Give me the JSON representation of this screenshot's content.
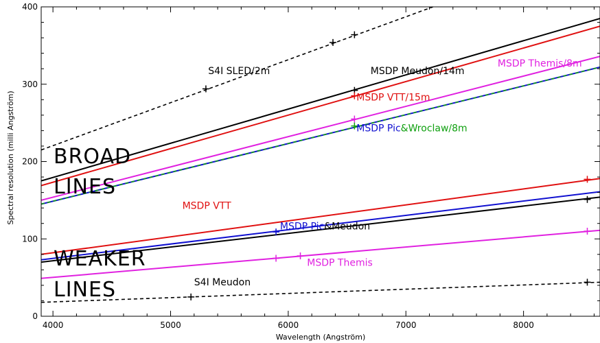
{
  "chart_data": {
    "type": "line",
    "title": "",
    "xlabel": "Wavelength (Angström)",
    "ylabel": "Spectral resolution (milli Angström)",
    "xlim": [
      3900,
      8650
    ],
    "ylim": [
      0,
      400
    ],
    "xticks": [
      4000,
      5000,
      6000,
      7000,
      8000
    ],
    "yticks": [
      0,
      100,
      200,
      300,
      400
    ],
    "grid": false,
    "colors": {
      "black": "#000000",
      "red": "#e01010",
      "magenta": "#e020e0",
      "blue": "#1010d0",
      "green": "#10a010"
    },
    "series": [
      {
        "color": "#000000",
        "dash": true,
        "x": [
          3900,
          7230
        ],
        "y": [
          215,
          400
        ]
      },
      {
        "color": "#000000",
        "dash": false,
        "x": [
          3900,
          8650
        ],
        "y": [
          175,
          385
        ]
      },
      {
        "color": "#e01010",
        "dash": false,
        "x": [
          3900,
          8650
        ],
        "y": [
          169,
          375
        ]
      },
      {
        "color": "#e020e0",
        "dash": false,
        "x": [
          3900,
          8650
        ],
        "y": [
          150,
          336
        ]
      },
      {
        "color": "#1010d0",
        "dash": false,
        "x": [
          3900,
          8650
        ],
        "y": [
          145,
          322
        ]
      },
      {
        "color": "#10a010",
        "dash": true,
        "x": [
          3900,
          8650
        ],
        "y": [
          145,
          322
        ]
      },
      {
        "color": "#e01010",
        "dash": false,
        "x": [
          3900,
          8650
        ],
        "y": [
          80,
          178
        ]
      },
      {
        "color": "#1010d0",
        "dash": false,
        "x": [
          3900,
          8650
        ],
        "y": [
          73,
          161
        ]
      },
      {
        "color": "#000000",
        "dash": false,
        "x": [
          3900,
          8650
        ],
        "y": [
          70,
          154
        ]
      },
      {
        "color": "#e020e0",
        "dash": false,
        "x": [
          3900,
          8650
        ],
        "y": [
          49,
          111
        ]
      },
      {
        "color": "#000000",
        "dash": true,
        "x": [
          3900,
          8650
        ],
        "y": [
          18,
          44
        ]
      }
    ],
    "markers": [
      {
        "color": "#000000",
        "x": 5300,
        "y": 294
      },
      {
        "color": "#000000",
        "x": 6380,
        "y": 354
      },
      {
        "color": "#000000",
        "x": 6563,
        "y": 364
      },
      {
        "color": "#000000",
        "x": 6563,
        "y": 292
      },
      {
        "color": "#e01010",
        "x": 6563,
        "y": 285
      },
      {
        "color": "#e020e0",
        "x": 6563,
        "y": 255
      },
      {
        "color": "#10a010",
        "x": 6563,
        "y": 246
      },
      {
        "color": "#e01010",
        "x": 8542,
        "y": 177
      },
      {
        "color": "#000000",
        "x": 8542,
        "y": 151
      },
      {
        "color": "#1010d0",
        "x": 5896,
        "y": 109
      },
      {
        "color": "#e020e0",
        "x": 5896,
        "y": 75
      },
      {
        "color": "#e020e0",
        "x": 6103,
        "y": 78
      },
      {
        "color": "#e020e0",
        "x": 8542,
        "y": 110
      },
      {
        "color": "#000000",
        "x": 5173,
        "y": 25
      },
      {
        "color": "#000000",
        "x": 8542,
        "y": 44
      }
    ],
    "annotations": [
      {
        "text": "S4I SLED/2m",
        "color": "#000000",
        "x": 5320,
        "y": 313
      },
      {
        "text": "MSDP Meudon/14m",
        "color": "#000000",
        "x": 6700,
        "y": 313
      },
      {
        "text": "MSDP Themis/8m",
        "color": "#e020e0",
        "x": 7780,
        "y": 323
      },
      {
        "text": "MSDP VTT/15m",
        "color": "#e01010",
        "x": 6580,
        "y": 279
      },
      {
        "text": "MSDP Pic&Wroclaw/8m",
        "color": "#10a010",
        "x": 6580,
        "y": 239
      },
      {
        "text": "MSDP VTT",
        "color": "#e01010",
        "x": 5100,
        "y": 139
      },
      {
        "text": "MSDP Pic&Meudon",
        "color": "#000000",
        "x": 5930,
        "y": 112
      },
      {
        "text": "MSDP Themis",
        "color": "#e020e0",
        "x": 6160,
        "y": 65
      },
      {
        "text": "S4I Meudon",
        "color": "#000000",
        "x": 5200,
        "y": 40
      }
    ],
    "region_labels": [
      "BROAD",
      "LINES",
      "WEAKER",
      "LINES"
    ]
  }
}
